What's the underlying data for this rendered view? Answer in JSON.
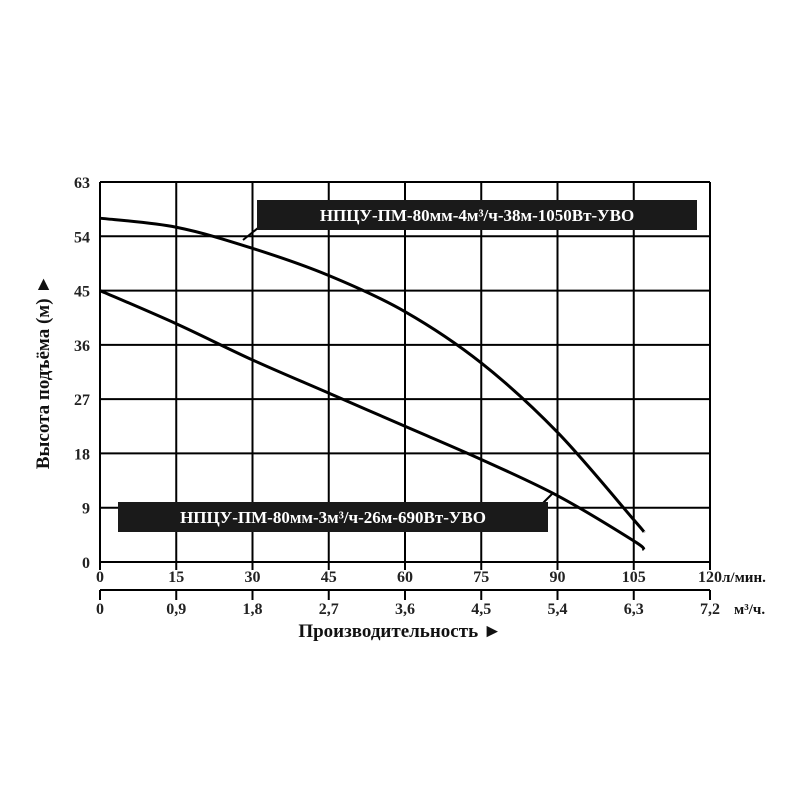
{
  "chart_data": {
    "type": "line",
    "ylabel": "Высота подъёма (м) ►",
    "xlabel": "Производительность ►",
    "y_ticks": [
      "0",
      "9",
      "18",
      "27",
      "36",
      "45",
      "54",
      "63"
    ],
    "x_ticks_lmin": [
      "0",
      "15",
      "30",
      "45",
      "60",
      "75",
      "90",
      "105",
      "120"
    ],
    "x_ticks_m3h": [
      "0",
      "0,9",
      "1,8",
      "2,7",
      "3,6",
      "4,5",
      "5,4",
      "6,3",
      "7,2"
    ],
    "x_unit_lmin": "л/мин.",
    "x_unit_m3h": "м³/ч.",
    "xlim": [
      0,
      120
    ],
    "ylim": [
      0,
      63
    ],
    "grid": true,
    "series": [
      {
        "name": "НПЦУ-ПМ-80мм-4м³/ч-38м-1050Вт-УВО",
        "x": [
          0,
          15,
          30,
          45,
          60,
          75,
          90,
          105,
          107
        ],
        "y": [
          57,
          55.5,
          52,
          47.5,
          41.5,
          33,
          21.5,
          7,
          5
        ]
      },
      {
        "name": "НПЦУ-ПМ-80мм-3м³/ч-26м-690Вт-УВО",
        "x": [
          0,
          15,
          30,
          45,
          60,
          75,
          90,
          105,
          107
        ],
        "y": [
          45,
          39.5,
          33.5,
          28,
          22.5,
          17,
          11,
          3.5,
          2
        ]
      }
    ]
  }
}
